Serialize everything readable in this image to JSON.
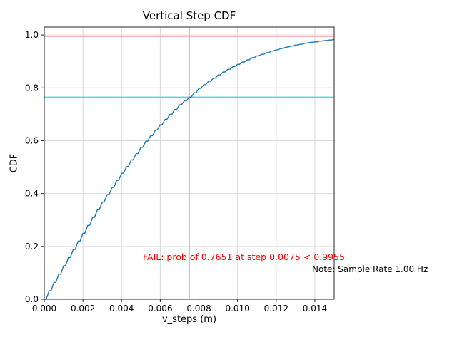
{
  "chart_data": {
    "type": "line",
    "title": "Vertical Step CDF",
    "xlabel": "v_steps (m)",
    "ylabel": "CDF",
    "xlim": [
      0.0,
      0.015
    ],
    "ylim": [
      0.0,
      1.03
    ],
    "grid": true,
    "legend": "none",
    "x_ticks": [
      0.0,
      0.002,
      0.004,
      0.006,
      0.008,
      0.01,
      0.012,
      0.014
    ],
    "x_tick_labels": [
      "0.000",
      "0.002",
      "0.004",
      "0.006",
      "0.008",
      "0.010",
      "0.012",
      "0.014"
    ],
    "y_ticks": [
      0.0,
      0.2,
      0.4,
      0.6,
      0.8,
      1.0
    ],
    "y_tick_labels": [
      "0.0",
      "0.2",
      "0.4",
      "0.6",
      "0.8",
      "1.0"
    ],
    "series": [
      {
        "name": "vertical-step-cdf",
        "color": "#1f77b4",
        "drawstyle": "steps",
        "x": [
          0.0,
          0.00025,
          0.0005,
          0.00075,
          0.001,
          0.00125,
          0.0015,
          0.00175,
          0.002,
          0.00225,
          0.0025,
          0.00275,
          0.003,
          0.00325,
          0.0035,
          0.00375,
          0.004,
          0.00425,
          0.0045,
          0.00475,
          0.005,
          0.00525,
          0.0055,
          0.00575,
          0.006,
          0.00625,
          0.0065,
          0.00675,
          0.007,
          0.00725,
          0.0075,
          0.00775,
          0.008,
          0.00825,
          0.0085,
          0.00875,
          0.009,
          0.00925,
          0.0095,
          0.00975,
          0.01,
          0.01025,
          0.0105,
          0.01075,
          0.011,
          0.01125,
          0.0115,
          0.01175,
          0.012,
          0.01225,
          0.0125,
          0.01275,
          0.013,
          0.01325,
          0.0135,
          0.01375,
          0.014,
          0.01425,
          0.0145,
          0.01475,
          0.015
        ],
        "y": [
          0.0,
          0.032,
          0.064,
          0.095,
          0.127,
          0.158,
          0.189,
          0.22,
          0.25,
          0.28,
          0.31,
          0.339,
          0.368,
          0.396,
          0.423,
          0.45,
          0.477,
          0.502,
          0.527,
          0.551,
          0.575,
          0.598,
          0.619,
          0.641,
          0.661,
          0.681,
          0.7,
          0.718,
          0.736,
          0.751,
          0.765,
          0.781,
          0.798,
          0.812,
          0.825,
          0.837,
          0.849,
          0.86,
          0.87,
          0.88,
          0.889,
          0.898,
          0.906,
          0.914,
          0.921,
          0.927,
          0.933,
          0.939,
          0.944,
          0.949,
          0.954,
          0.958,
          0.962,
          0.965,
          0.969,
          0.972,
          0.974,
          0.977,
          0.979,
          0.981,
          0.983
        ]
      }
    ],
    "reference_lines": [
      {
        "name": "required-probability-line",
        "orientation": "horizontal",
        "value": 0.9955,
        "color": "#ff3b3b"
      },
      {
        "name": "achieved-probability-line",
        "orientation": "horizontal",
        "value": 0.7651,
        "color": "#35cfe6"
      },
      {
        "name": "step-threshold-line",
        "orientation": "vertical",
        "value": 0.0075,
        "color": "#35cfe6"
      }
    ],
    "annotations": [
      {
        "name": "fail-message",
        "text": "FAIL: prob of 0.7651 at step 0.0075 < 0.9955",
        "color": "#ff0000"
      },
      {
        "name": "sample-rate-note",
        "text": "Note: Sample Rate 1.00 Hz",
        "color": "#000000"
      }
    ],
    "colors": {
      "curve": "#1f77b4",
      "grid": "#d9d9d9",
      "axis": "#262626",
      "tick_text": "#000000",
      "background": "#ffffff"
    }
  }
}
